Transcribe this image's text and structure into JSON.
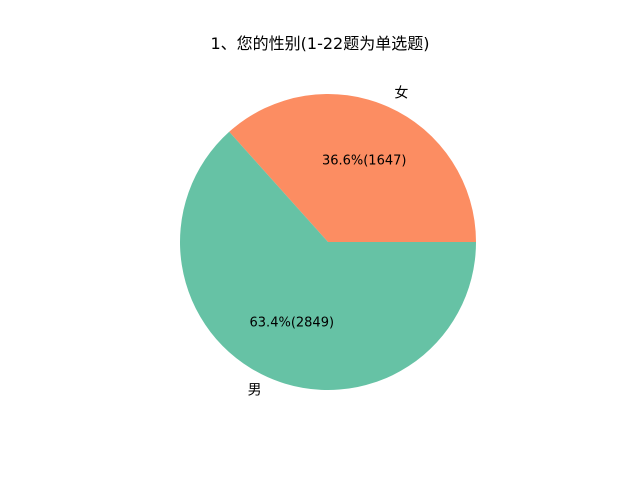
{
  "chart_data": {
    "type": "pie",
    "title": "1、您的性别(1-22题为单选题)",
    "slices": [
      {
        "label": "女",
        "value": 1647,
        "percent": 36.6,
        "percent_label": "36.6%(1647)",
        "color": "#fc8d62"
      },
      {
        "label": "男",
        "value": 2849,
        "percent": 63.4,
        "percent_label": "63.4%(2849)",
        "color": "#66c2a5"
      }
    ],
    "start_angle_deg": 0,
    "direction": "counterclockwise",
    "legend": "none"
  }
}
